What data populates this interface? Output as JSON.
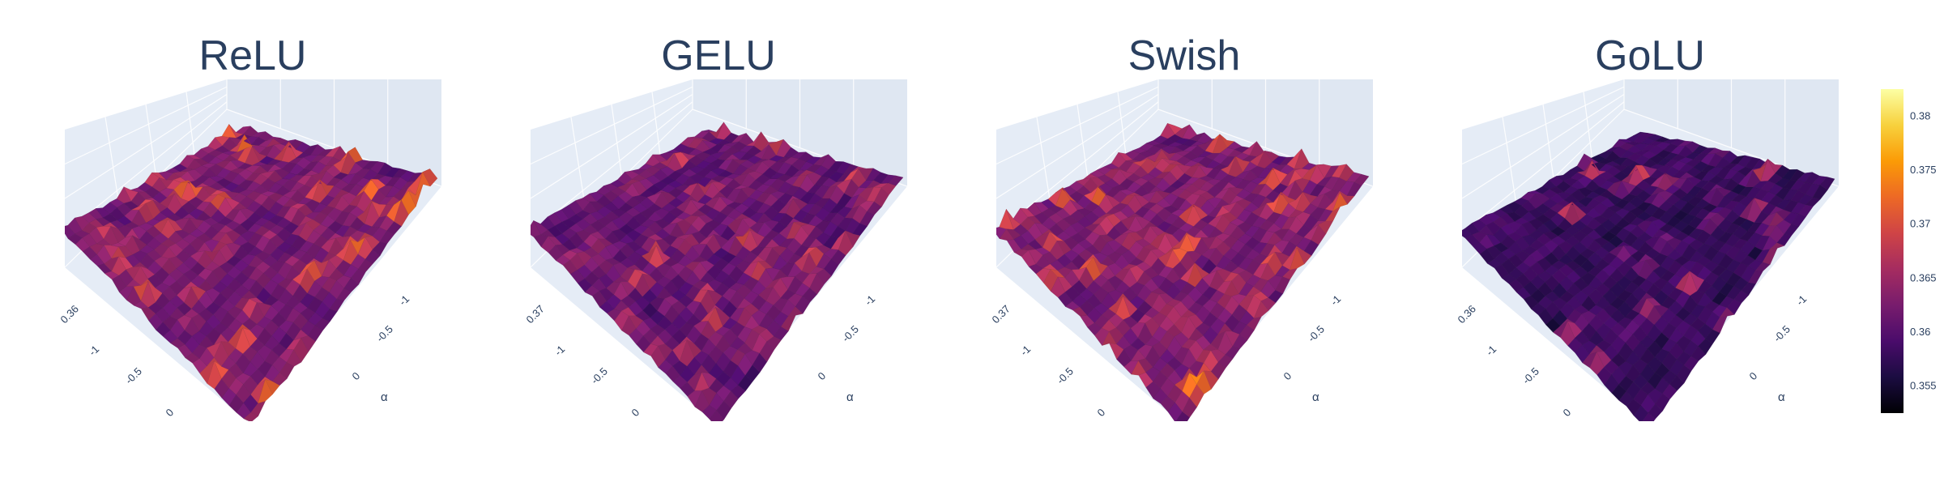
{
  "chart_data": {
    "type": "surface",
    "colorscale": "inferno",
    "colorscale_stops": [
      "#000004",
      "#1b0c41",
      "#4a0c6b",
      "#781c6d",
      "#a52c60",
      "#cf4446",
      "#ed6925",
      "#fb9b06",
      "#f7d13d",
      "#fcffa4"
    ],
    "plot_background": "#e5ecf6",
    "axis_name": "α",
    "axis_ticks": [
      "-1",
      "-0.5",
      "0"
    ],
    "colorbar": {
      "ticks": [
        "0.355",
        "0.36",
        "0.365",
        "0.37",
        "0.375",
        "0.38"
      ],
      "range": [
        0.3525,
        0.3825
      ]
    },
    "panels": [
      {
        "title": "ReLU",
        "z_label": "0.36",
        "peak": 0.3815,
        "spike_density": 0.34,
        "base": 0.358
      },
      {
        "title": "GELU",
        "z_label": "0.37",
        "peak": 0.379,
        "spike_density": 0.38,
        "base": 0.357
      },
      {
        "title": "Swish",
        "z_label": "0.37",
        "peak": 0.381,
        "spike_density": 0.4,
        "base": 0.358
      },
      {
        "title": "GoLU",
        "z_label": "0.36",
        "peak": 0.379,
        "spike_density": 0.1,
        "base": 0.3545
      }
    ]
  }
}
